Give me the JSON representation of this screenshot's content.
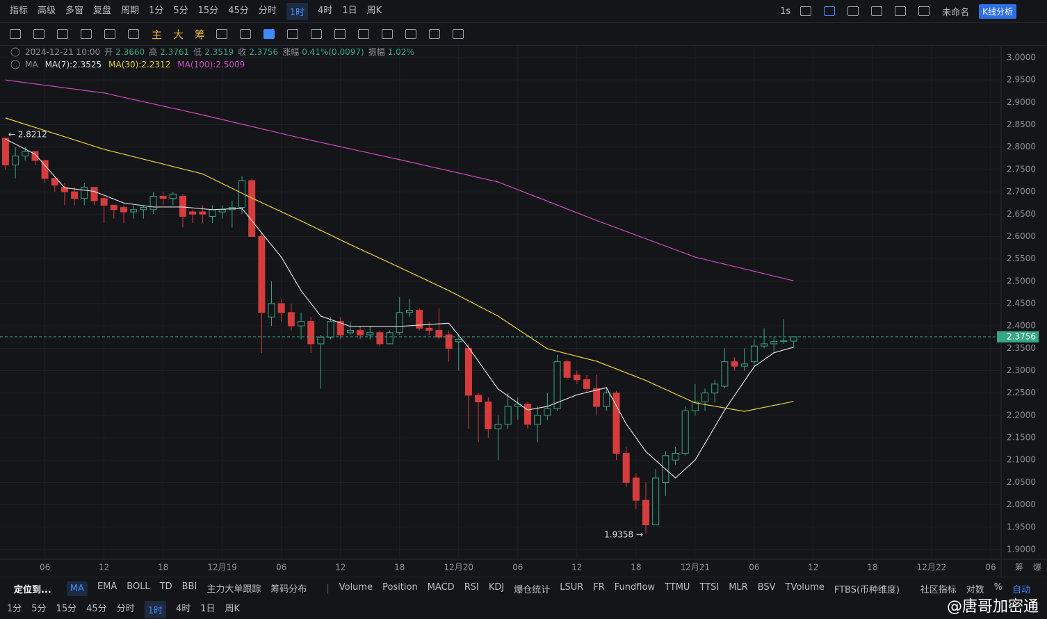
{
  "top_toolbar": {
    "items": [
      "指标",
      "高级",
      "多窗",
      "复盘",
      "周期",
      "1分",
      "5分",
      "15分",
      "45分",
      "分时",
      "1时",
      "4时",
      "1日",
      "周K"
    ],
    "active_index": 10,
    "right": [
      "1s",
      "未命名",
      "K线分析"
    ]
  },
  "draw_toolbar": {
    "items": [
      "主",
      "大",
      "筹"
    ]
  },
  "info": {
    "date": "2024-12-21 10:00",
    "fields": [
      {
        "label": "开",
        "value": "2.3660"
      },
      {
        "label": "高",
        "value": "2.3761"
      },
      {
        "label": "低",
        "value": "2.3519"
      },
      {
        "label": "收",
        "value": "2.3756"
      },
      {
        "label": "涨幅",
        "value": "0.41%(0.0097)"
      },
      {
        "label": "振幅",
        "value": "1.02%"
      }
    ],
    "ma_label": "MA"
  },
  "chart_data": {
    "type": "candlestick",
    "open": [
      2.82,
      2.76,
      2.78,
      2.79,
      2.77,
      2.73,
      2.71,
      2.7,
      2.685,
      2.71,
      2.685,
      2.67,
      2.665,
      2.655,
      2.66,
      2.66,
      2.69,
      2.685,
      2.69,
      2.655,
      2.655,
      2.645,
      2.655,
      2.66,
      2.665,
      2.725,
      2.6,
      2.42,
      2.45,
      2.43,
      2.4,
      2.41,
      2.36,
      2.375,
      2.41,
      2.385,
      2.39,
      2.38,
      2.385,
      2.36,
      2.385,
      2.43,
      2.435,
      2.395,
      2.39,
      2.38,
      2.365,
      2.35,
      2.245,
      2.23,
      2.17,
      2.18,
      2.22,
      2.225,
      2.18,
      2.2,
      2.215,
      2.32,
      2.29,
      2.28,
      2.26,
      2.22,
      2.25,
      2.115,
      2.06,
      2.01,
      1.955,
      2.05,
      2.1,
      2.115,
      2.21,
      2.23,
      2.25,
      2.265,
      2.32,
      2.31,
      2.32,
      2.355,
      2.36,
      2.365,
      2.366
    ],
    "high": [
      2.8212,
      2.8,
      2.8,
      2.79,
      2.77,
      2.73,
      2.72,
      2.71,
      2.72,
      2.71,
      2.69,
      2.67,
      2.67,
      2.67,
      2.67,
      2.7,
      2.7,
      2.7,
      2.695,
      2.66,
      2.67,
      2.67,
      2.67,
      2.68,
      2.735,
      2.73,
      2.61,
      2.5,
      2.46,
      2.45,
      2.43,
      2.42,
      2.38,
      2.42,
      2.42,
      2.41,
      2.4,
      2.4,
      2.39,
      2.39,
      2.465,
      2.46,
      2.44,
      2.41,
      2.44,
      2.39,
      2.38,
      2.36,
      2.25,
      2.24,
      2.2,
      2.25,
      2.24,
      2.23,
      2.22,
      2.25,
      2.335,
      2.325,
      2.3,
      2.29,
      2.29,
      2.26,
      2.255,
      2.13,
      2.07,
      2.05,
      2.08,
      2.12,
      2.13,
      2.22,
      2.27,
      2.26,
      2.28,
      2.35,
      2.33,
      2.35,
      2.37,
      2.395,
      2.375,
      2.415,
      2.3761
    ],
    "low": [
      2.75,
      2.73,
      2.77,
      2.76,
      2.72,
      2.7,
      2.67,
      2.67,
      2.67,
      2.67,
      2.63,
      2.64,
      2.63,
      2.64,
      2.64,
      2.65,
      2.67,
      2.67,
      2.62,
      2.63,
      2.63,
      2.63,
      2.64,
      2.62,
      2.65,
      2.6,
      2.34,
      2.4,
      2.41,
      2.39,
      2.37,
      2.34,
      2.26,
      2.37,
      2.37,
      2.38,
      2.37,
      2.37,
      2.355,
      2.36,
      2.38,
      2.42,
      2.39,
      2.38,
      2.37,
      2.32,
      2.3,
      2.17,
      2.14,
      2.15,
      2.1,
      2.17,
      2.19,
      2.17,
      2.14,
      2.19,
      2.21,
      2.28,
      2.27,
      2.25,
      2.2,
      2.21,
      2.1,
      2.04,
      1.99,
      1.9358,
      1.955,
      2.02,
      2.09,
      2.11,
      2.2,
      2.21,
      2.23,
      2.26,
      2.3,
      2.3,
      2.31,
      2.35,
      2.34,
      2.36,
      2.3519
    ],
    "close": [
      2.76,
      2.78,
      2.79,
      2.77,
      2.73,
      2.715,
      2.7,
      2.685,
      2.71,
      2.68,
      2.67,
      2.66,
      2.655,
      2.66,
      2.665,
      2.69,
      2.685,
      2.695,
      2.645,
      2.65,
      2.65,
      2.66,
      2.66,
      2.665,
      2.725,
      2.6,
      2.43,
      2.45,
      2.43,
      2.4,
      2.41,
      2.36,
      2.375,
      2.41,
      2.38,
      2.39,
      2.38,
      2.385,
      2.36,
      2.385,
      2.43,
      2.435,
      2.395,
      2.39,
      2.375,
      2.35,
      2.37,
      2.245,
      2.23,
      2.17,
      2.18,
      2.22,
      2.225,
      2.18,
      2.2,
      2.215,
      2.32,
      2.285,
      2.28,
      2.26,
      2.22,
      2.25,
      2.115,
      2.05,
      2.01,
      1.955,
      2.06,
      2.11,
      2.115,
      2.21,
      2.23,
      2.25,
      2.27,
      2.32,
      2.31,
      2.315,
      2.355,
      2.36,
      2.365,
      2.367,
      2.3756
    ],
    "up_color": "#35a882",
    "down_color": "#d63c3c",
    "lines": [
      {
        "legend": "MA(7):2.3525",
        "color": "#dcdcdc",
        "x": [
          0,
          3,
          6,
          9,
          12,
          15,
          18,
          21,
          24,
          26,
          28,
          30,
          32,
          35,
          40,
          45,
          47,
          50,
          53,
          55,
          58,
          61,
          63,
          65,
          68,
          70,
          73,
          76,
          78,
          80
        ],
        "values": [
          2.818,
          2.784,
          2.709,
          2.701,
          2.675,
          2.666,
          2.666,
          2.66,
          2.663,
          2.608,
          2.554,
          2.479,
          2.422,
          2.399,
          2.399,
          2.406,
          2.352,
          2.259,
          2.212,
          2.22,
          2.246,
          2.262,
          2.181,
          2.119,
          2.06,
          2.1,
          2.212,
          2.309,
          2.34,
          2.3525
        ]
      },
      {
        "legend": "MA(30):2.2312",
        "color": "#e6d23a",
        "x": [
          0,
          10,
          20,
          25,
          30,
          35,
          40,
          45,
          50,
          55,
          60,
          65,
          70,
          75,
          80
        ],
        "values": [
          2.865,
          2.795,
          2.74,
          2.686,
          2.635,
          2.582,
          2.531,
          2.479,
          2.422,
          2.349,
          2.321,
          2.278,
          2.228,
          2.209,
          2.2312
        ]
      },
      {
        "legend": "MA(100):2.5009",
        "color": "#d04bbd",
        "x": [
          0,
          10,
          20,
          30,
          40,
          50,
          60,
          70,
          80
        ],
        "values": [
          2.95,
          2.921,
          2.872,
          2.82,
          2.772,
          2.722,
          2.636,
          2.554,
          2.5009
        ]
      }
    ],
    "xlim": [
      -0.56,
      101.06
    ],
    "xticks": [
      {
        "value": 4,
        "label": "06"
      },
      {
        "value": 10,
        "label": "12"
      },
      {
        "value": 16,
        "label": "18"
      },
      {
        "value": 22,
        "label": "12月19"
      },
      {
        "value": 28,
        "label": "06"
      },
      {
        "value": 34,
        "label": "12"
      },
      {
        "value": 40,
        "label": "18"
      },
      {
        "value": 46,
        "label": "12月20"
      },
      {
        "value": 52,
        "label": "06"
      },
      {
        "value": 58,
        "label": "12"
      },
      {
        "value": 64,
        "label": "18"
      },
      {
        "value": 70,
        "label": "12月21"
      },
      {
        "value": 76,
        "label": "06"
      },
      {
        "value": 82,
        "label": "12"
      },
      {
        "value": 88,
        "label": "18"
      },
      {
        "value": 94,
        "label": "12月22"
      },
      {
        "value": 100,
        "label": "06"
      }
    ],
    "ylim": [
      1.8782,
      3.0264
    ],
    "yticks": [
      {
        "value": 1.9,
        "label": "1.9000"
      },
      {
        "value": 1.95,
        "label": "1.9500"
      },
      {
        "value": 2.0,
        "label": "2.0000"
      },
      {
        "value": 2.05,
        "label": "2.0500"
      },
      {
        "value": 2.1,
        "label": "2.1000"
      },
      {
        "value": 2.15,
        "label": "2.1500"
      },
      {
        "value": 2.2,
        "label": "2.2000"
      },
      {
        "value": 2.25,
        "label": "2.2500"
      },
      {
        "value": 2.3,
        "label": "2.3000"
      },
      {
        "value": 2.35,
        "label": "2.3500"
      },
      {
        "value": 2.4,
        "label": "2.4000"
      },
      {
        "value": 2.45,
        "label": "2.4500"
      },
      {
        "value": 2.5,
        "label": "2.5000"
      },
      {
        "value": 2.55,
        "label": "2.5500"
      },
      {
        "value": 2.6,
        "label": "2.6000"
      },
      {
        "value": 2.65,
        "label": "2.6500"
      },
      {
        "value": 2.7,
        "label": "2.7000"
      },
      {
        "value": 2.75,
        "label": "2.7500"
      },
      {
        "value": 2.8,
        "label": "2.8000"
      },
      {
        "value": 2.85,
        "label": "2.8500"
      },
      {
        "value": 2.9,
        "label": "2.9000"
      },
      {
        "value": 2.95,
        "label": "2.9500"
      },
      {
        "value": 3.0,
        "label": "3.0000"
      }
    ],
    "last_price": {
      "value": 2.3756,
      "label": "2.3756"
    },
    "annotations": [
      {
        "x": 0,
        "value": 2.8212,
        "label": "← 2.8212",
        "side": "right"
      },
      {
        "x": 65,
        "value": 1.9358,
        "label": "1.9358 →",
        "side": "left"
      }
    ],
    "axis_corner": [
      "筹",
      "爆"
    ],
    "grid": true
  },
  "bottom_bar": {
    "locate": "定位到...",
    "indicators_main": [
      "MA",
      "EMA",
      "BOLL",
      "TD",
      "BBI",
      "主力大单跟踪",
      "筹码分布"
    ],
    "active_main": 0,
    "indicators_sub": [
      "Volume",
      "Position",
      "MACD",
      "RSI",
      "KDJ",
      "爆仓统计",
      "LSUR",
      "FR",
      "Fundflow",
      "TTMU",
      "TTSI",
      "MLR",
      "BSV",
      "TVolume",
      "FTBS(币种维度)"
    ],
    "right": [
      "社区指标",
      "对数",
      "%",
      "自动"
    ]
  },
  "timeframes": {
    "items": [
      "1分",
      "5分",
      "15分",
      "45分",
      "分时",
      "1时",
      "4时",
      "1日",
      "周K"
    ],
    "active_index": 5
  },
  "watermark": "@唐哥加密通"
}
